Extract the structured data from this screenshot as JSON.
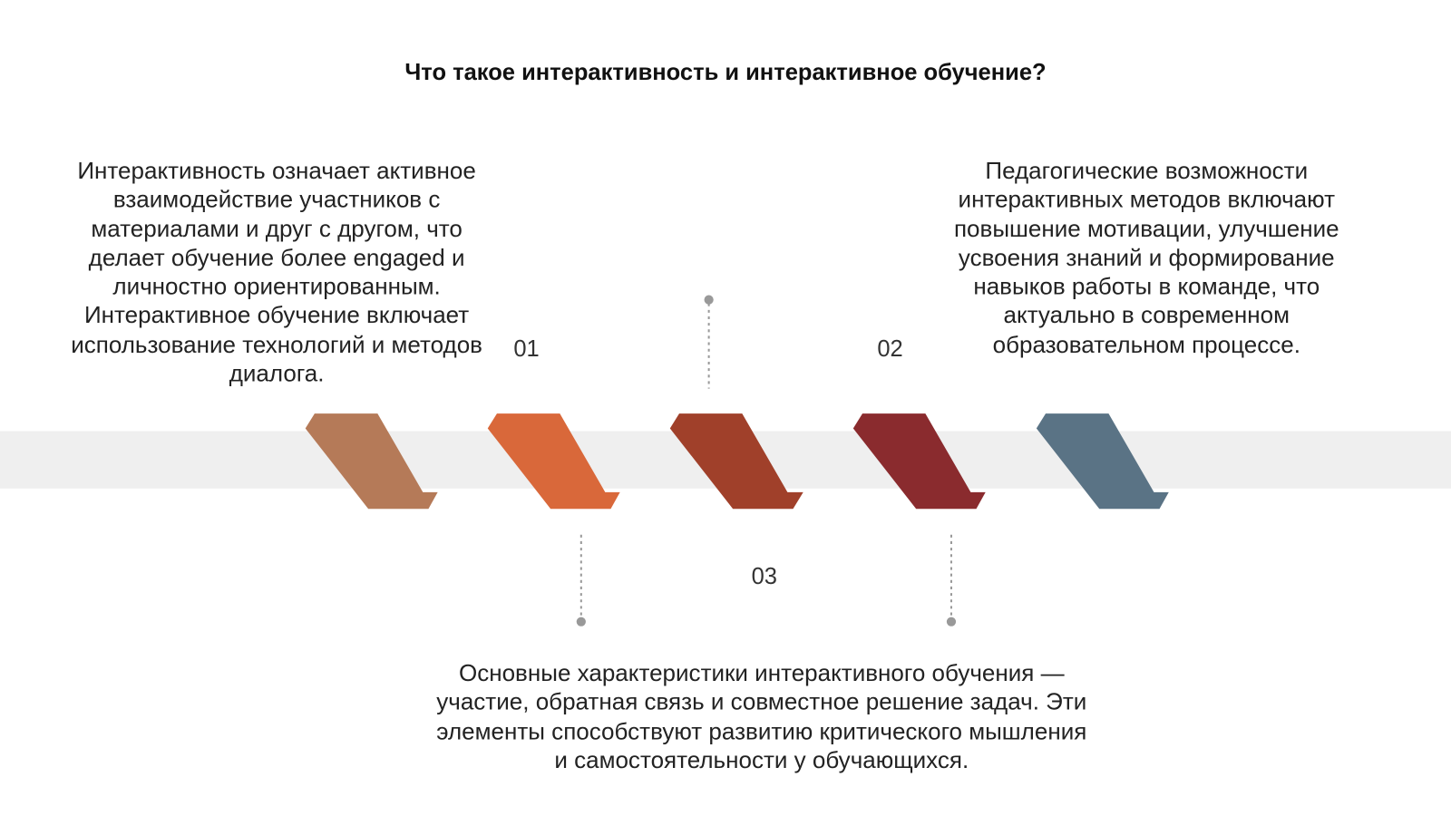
{
  "title": "Что такое интерактивность и интерактивное обучение?",
  "items": [
    {
      "number": "01",
      "text": "Интерактивность означает активное взаимодействие участников с материалами и друг с другом, что делает обучение более engaged и личностно ориентированным. Интерактивное обучение включает использование технологий и методов диалога."
    },
    {
      "number": "02",
      "text": "Педагогические возможности интерактивных методов включают повышение мотивации, улучшение усвоения знаний и формирование навыков работы в команде, что актуально в современном образовательном процессе."
    },
    {
      "number": "03",
      "text": "Основные характеристики интерактивного обучения — участие, обратная связь и совместное решение задач. Эти элементы способствуют развитию критического мышления и самостоятельности у обучающихся."
    }
  ]
}
